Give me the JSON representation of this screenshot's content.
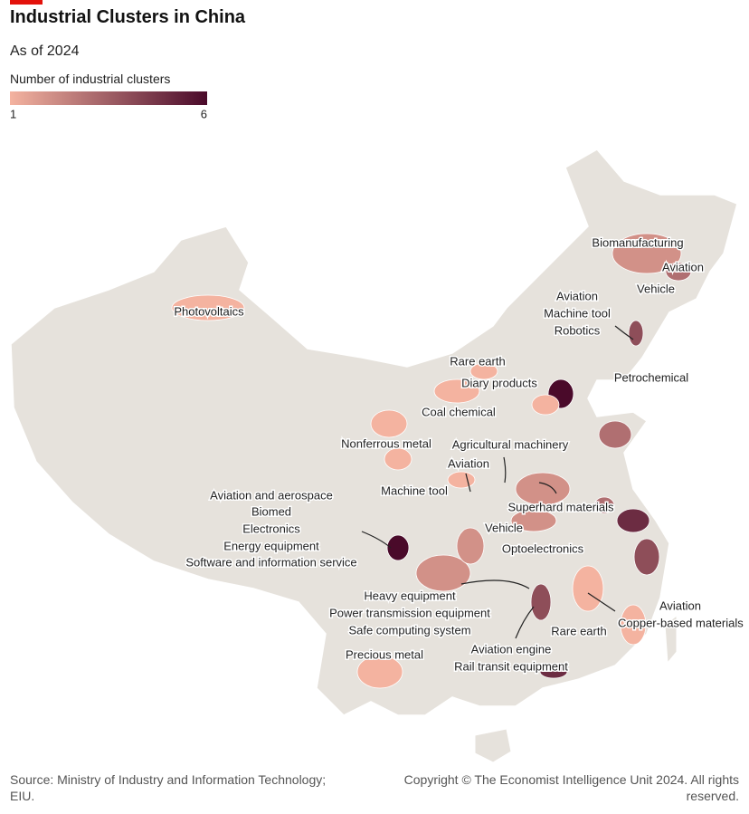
{
  "header": {
    "title": "Industrial Clusters in China",
    "subtitle": "As of 2024"
  },
  "legend": {
    "title": "Number of industrial clusters",
    "min": 1,
    "max": 6,
    "color_min": "#f4b3a0",
    "color_max": "#4a0a2a"
  },
  "regions": [
    1,
    2,
    3,
    4,
    6,
    1,
    1,
    1,
    1,
    1,
    3,
    2,
    1,
    6,
    2,
    2,
    2,
    5,
    4,
    4,
    1,
    1,
    5,
    1,
    3
  ],
  "annotations": [
    "Biomanufacturing",
    "Aviation",
    "Vehicle",
    "Aviation",
    "Machine tool",
    "Robotics",
    "Photovoltaics",
    "Rare earth",
    "Diary products",
    "Petrochemical",
    "Coal chemical",
    "Nonferrous metal",
    "Agricultural machinery",
    "Aviation",
    "Machine tool",
    "Aviation and aerospace",
    "Biomed",
    "Electronics",
    "Energy equipment",
    "Software and information service",
    "Superhard materials",
    "Vehicle",
    "Optoelectronics",
    "Heavy equipment",
    "Power transmission equipment",
    "Safe computing system",
    "Aviation",
    "Copper-based materials",
    "Rare earth",
    "Precious metal",
    "Aviation engine",
    "Rail transit equipment"
  ],
  "footer": {
    "source": "Source: Ministry of Industry and Information Technology; EIU.",
    "copyright": "Copyright © The Economist Intelligence Unit 2024. All rights reserved."
  }
}
